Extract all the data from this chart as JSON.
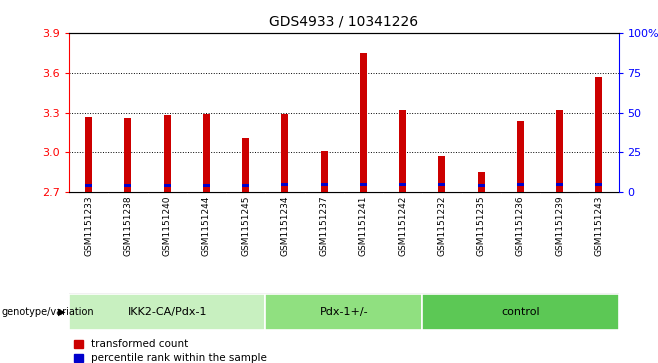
{
  "title": "GDS4933 / 10341226",
  "samples": [
    "GSM1151233",
    "GSM1151238",
    "GSM1151240",
    "GSM1151244",
    "GSM1151245",
    "GSM1151234",
    "GSM1151237",
    "GSM1151241",
    "GSM1151242",
    "GSM1151232",
    "GSM1151235",
    "GSM1151236",
    "GSM1151239",
    "GSM1151243"
  ],
  "red_values": [
    3.27,
    3.26,
    3.28,
    3.29,
    3.11,
    3.29,
    3.01,
    3.75,
    3.32,
    2.97,
    2.85,
    3.24,
    3.32,
    3.57
  ],
  "blue_values": [
    2.74,
    2.74,
    2.74,
    2.74,
    2.74,
    2.745,
    2.745,
    2.745,
    2.745,
    2.745,
    2.74,
    2.745,
    2.745,
    2.745
  ],
  "blue_heights": [
    0.025,
    0.025,
    0.025,
    0.025,
    0.025,
    0.025,
    0.025,
    0.025,
    0.025,
    0.025,
    0.025,
    0.025,
    0.025,
    0.025
  ],
  "ymin": 2.7,
  "ymax": 3.9,
  "yticks": [
    2.7,
    3.0,
    3.3,
    3.6,
    3.9
  ],
  "right_yticks_pct": [
    0,
    25,
    50,
    75,
    100
  ],
  "right_ylabels": [
    "0",
    "25",
    "50",
    "75",
    "100%"
  ],
  "groups": [
    {
      "label": "IKK2-CA/Pdx-1",
      "start": 0,
      "end": 5,
      "color": "#c8f0c0"
    },
    {
      "label": "Pdx-1+/-",
      "start": 5,
      "end": 9,
      "color": "#90e080"
    },
    {
      "label": "control",
      "start": 9,
      "end": 14,
      "color": "#5cc855"
    }
  ],
  "bar_width": 0.18,
  "bar_color_red": "#cc0000",
  "bar_color_blue": "#0000cc",
  "bg_color": "#ffffff",
  "sample_bg_color": "#d0d0d0",
  "legend_red": "transformed count",
  "legend_blue": "percentile rank within the sample",
  "xlabel_left": "genotype/variation"
}
